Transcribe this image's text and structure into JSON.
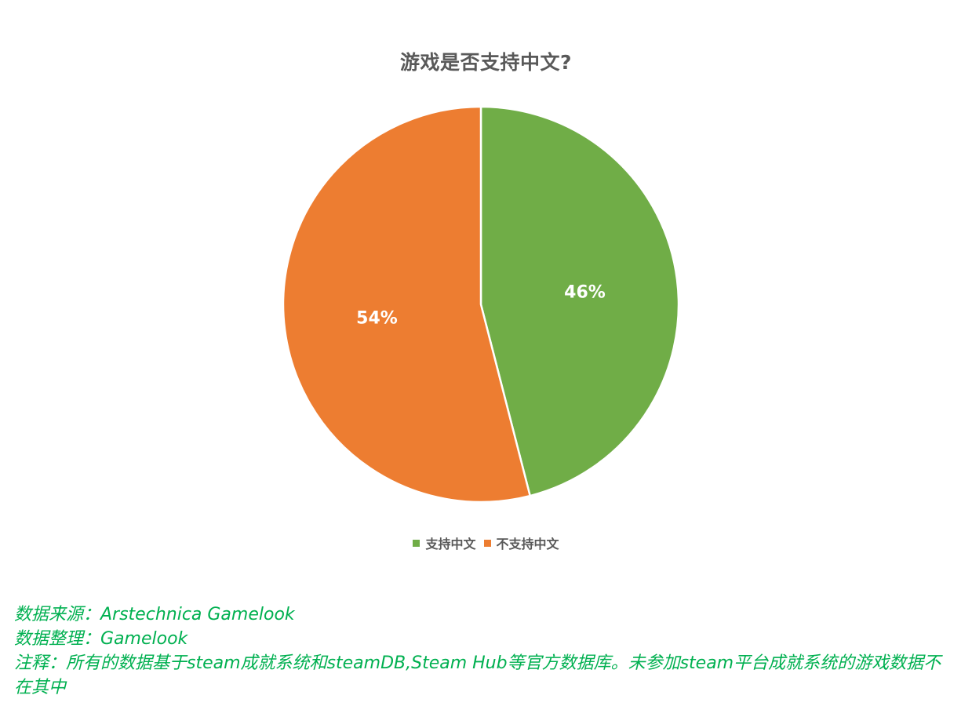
{
  "chart_data": {
    "type": "pie",
    "title": "游戏是否支持中文?",
    "categories": [
      "支持中文",
      "不支持中文"
    ],
    "values": [
      46,
      54
    ],
    "data_labels": [
      "46%",
      "54%"
    ],
    "colors": [
      "#70ad47",
      "#ed7d31"
    ],
    "legend_position": "bottom",
    "start_angle": "12 o'clock",
    "direction": "clockwise"
  },
  "notes": {
    "source": "数据来源：Arstechnica  Gamelook",
    "compiled": "数据整理：Gamelook",
    "remark": "注释：所有的数据基于steam成就系统和steamDB,Steam Hub等官方数据库。未参加steam平台成就系统的游戏数据不在其中",
    "color": "#00b050"
  }
}
